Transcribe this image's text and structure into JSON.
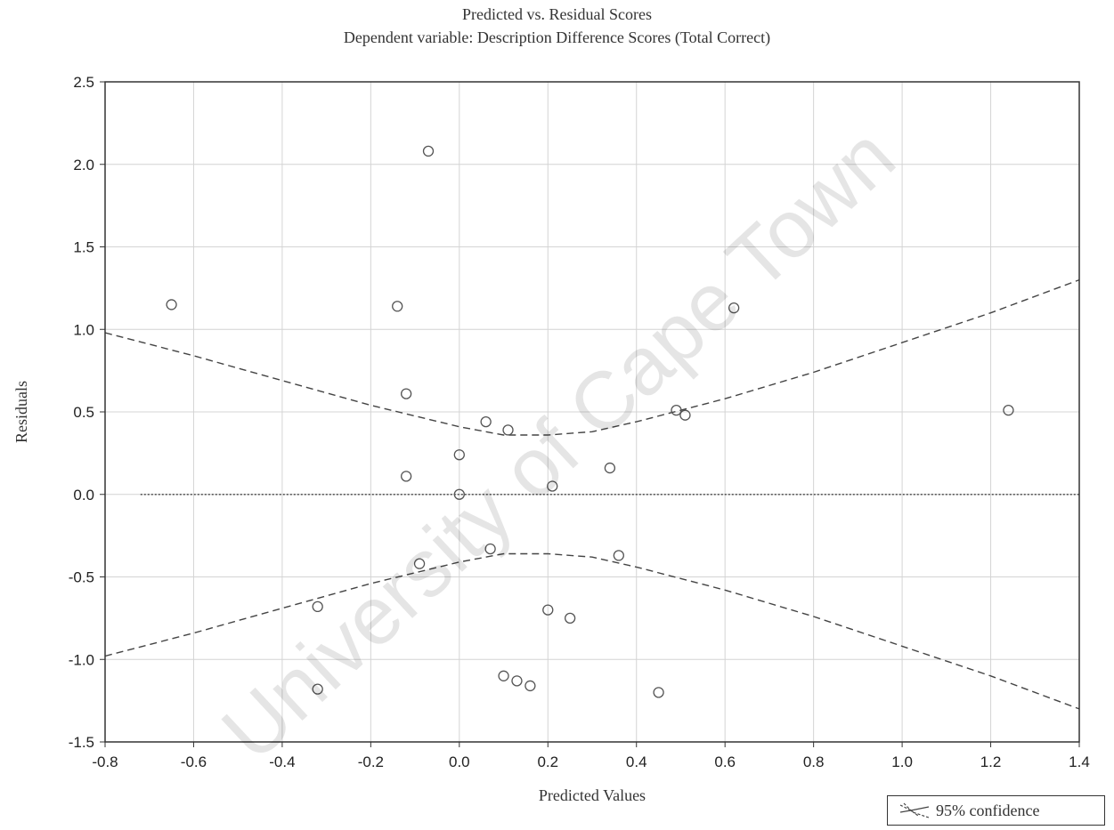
{
  "chart_data": {
    "type": "scatter",
    "title": "Predicted vs. Residual Scores",
    "subtitle": "Dependent variable: Description Difference Scores (Total Correct)",
    "xlabel": "Predicted Values",
    "ylabel": "Residuals",
    "xlim": [
      -0.8,
      1.4
    ],
    "ylim": [
      -1.5,
      2.5
    ],
    "x_ticks": [
      "-0.8",
      "-0.6",
      "-0.4",
      "-0.2",
      "0.0",
      "0.2",
      "0.4",
      "0.6",
      "0.8",
      "1.0",
      "1.2",
      "1.4"
    ],
    "y_ticks": [
      "2.5",
      "2.0",
      "1.5",
      "1.0",
      "0.5",
      "0.0",
      "-0.5",
      "-1.0",
      "-1.5"
    ],
    "grid": true,
    "legend_position": "bottom-right",
    "legend_label": "95% confidence",
    "series": [
      {
        "kind": "points",
        "points": [
          {
            "x": -0.65,
            "y": 1.15
          },
          {
            "x": -0.14,
            "y": 1.14
          },
          {
            "x": -0.07,
            "y": 2.08
          },
          {
            "x": -0.12,
            "y": 0.61
          },
          {
            "x": -0.12,
            "y": 0.11
          },
          {
            "x": -0.09,
            "y": -0.42
          },
          {
            "x": -0.32,
            "y": -0.68
          },
          {
            "x": -0.32,
            "y": -1.18
          },
          {
            "x": 0.0,
            "y": 0.24
          },
          {
            "x": 0.0,
            "y": 0.0
          },
          {
            "x": 0.06,
            "y": 0.44
          },
          {
            "x": 0.11,
            "y": 0.39
          },
          {
            "x": 0.07,
            "y": -0.33
          },
          {
            "x": 0.1,
            "y": -1.1
          },
          {
            "x": 0.13,
            "y": -1.13
          },
          {
            "x": 0.16,
            "y": -1.16
          },
          {
            "x": 0.2,
            "y": -0.7
          },
          {
            "x": 0.21,
            "y": 0.05
          },
          {
            "x": 0.25,
            "y": -0.75
          },
          {
            "x": 0.34,
            "y": 0.16
          },
          {
            "x": 0.36,
            "y": -0.37
          },
          {
            "x": 0.45,
            "y": -1.2
          },
          {
            "x": 0.49,
            "y": 0.51
          },
          {
            "x": 0.51,
            "y": 0.48
          },
          {
            "x": 0.62,
            "y": 1.13
          },
          {
            "x": 1.24,
            "y": 0.51
          }
        ]
      },
      {
        "kind": "regression-line",
        "points": [
          {
            "x": -0.72,
            "y": 0.0
          },
          {
            "x": 1.4,
            "y": 0.0
          }
        ]
      },
      {
        "kind": "upper-confidence-band",
        "points": [
          {
            "x": -0.8,
            "y": 0.98
          },
          {
            "x": -0.6,
            "y": 0.84
          },
          {
            "x": -0.4,
            "y": 0.69
          },
          {
            "x": -0.2,
            "y": 0.54
          },
          {
            "x": 0.0,
            "y": 0.41
          },
          {
            "x": 0.1,
            "y": 0.36
          },
          {
            "x": 0.2,
            "y": 0.36
          },
          {
            "x": 0.3,
            "y": 0.38
          },
          {
            "x": 0.4,
            "y": 0.44
          },
          {
            "x": 0.6,
            "y": 0.58
          },
          {
            "x": 0.8,
            "y": 0.74
          },
          {
            "x": 1.0,
            "y": 0.92
          },
          {
            "x": 1.2,
            "y": 1.1
          },
          {
            "x": 1.4,
            "y": 1.3
          }
        ]
      },
      {
        "kind": "lower-confidence-band",
        "points": [
          {
            "x": -0.8,
            "y": -0.98
          },
          {
            "x": -0.6,
            "y": -0.84
          },
          {
            "x": -0.4,
            "y": -0.69
          },
          {
            "x": -0.2,
            "y": -0.54
          },
          {
            "x": 0.0,
            "y": -0.41
          },
          {
            "x": 0.1,
            "y": -0.36
          },
          {
            "x": 0.2,
            "y": -0.36
          },
          {
            "x": 0.3,
            "y": -0.38
          },
          {
            "x": 0.4,
            "y": -0.44
          },
          {
            "x": 0.6,
            "y": -0.58
          },
          {
            "x": 0.8,
            "y": -0.74
          },
          {
            "x": 1.0,
            "y": -0.92
          },
          {
            "x": 1.2,
            "y": -1.1
          },
          {
            "x": 1.4,
            "y": -1.3
          }
        ]
      }
    ]
  },
  "watermark": "University of Cape Town",
  "colors": {
    "axis": "#333333",
    "grid": "#d4d4d4",
    "marker": "#555555",
    "line": "#444444"
  }
}
